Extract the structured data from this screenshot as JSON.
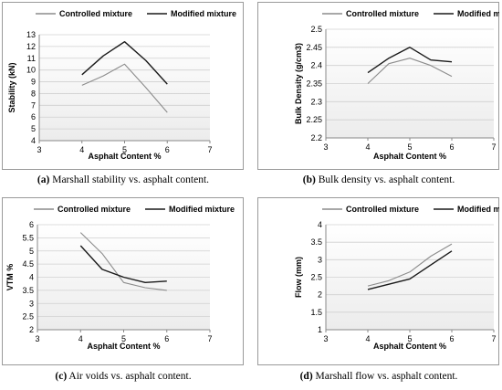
{
  "chart_data": [
    {
      "type": "line",
      "xlabel": "Asphalt Content %",
      "ylabel": "Stability (kN)",
      "xlim": [
        3,
        7
      ],
      "ylim": [
        4,
        13
      ],
      "xticks": [
        "3",
        "4",
        "5",
        "6",
        "7"
      ],
      "yticks": [
        "4",
        "5",
        "6",
        "7",
        "8",
        "9",
        "10",
        "11",
        "12",
        "13"
      ],
      "legend": "top",
      "grid": "horizontal",
      "series": [
        {
          "name": "Controlled mixture",
          "color": "#8c8c8c",
          "points": [
            [
              4,
              8.7
            ],
            [
              4.5,
              9.5
            ],
            [
              5,
              10.5
            ],
            [
              5.5,
              8.5
            ],
            [
              6,
              6.4
            ]
          ]
        },
        {
          "name": "Modified mixture",
          "color": "#1a1a1a",
          "points": [
            [
              4,
              9.6
            ],
            [
              4.5,
              11.2
            ],
            [
              5,
              12.4
            ],
            [
              5.5,
              10.8
            ],
            [
              6,
              8.8
            ]
          ]
        }
      ]
    },
    {
      "type": "line",
      "xlabel": "Asphalt Content %",
      "ylabel": "Bulk Density (g/cm3)",
      "xlim": [
        3,
        7
      ],
      "ylim": [
        2.2,
        2.5
      ],
      "xticks": [
        "3",
        "4",
        "5",
        "6",
        "7"
      ],
      "yticks": [
        "2.2",
        "2.25",
        "2.3",
        "2.35",
        "2.4",
        "2.45",
        "2.5"
      ],
      "legend": "top",
      "grid": "horizontal",
      "series": [
        {
          "name": "Controlled mixture",
          "color": "#8c8c8c",
          "points": [
            [
              4,
              2.35
            ],
            [
              4.5,
              2.405
            ],
            [
              5,
              2.42
            ],
            [
              5.5,
              2.4
            ],
            [
              6,
              2.37
            ]
          ]
        },
        {
          "name": "Modified mixture",
          "color": "#1a1a1a",
          "points": [
            [
              4,
              2.38
            ],
            [
              4.5,
              2.42
            ],
            [
              5,
              2.45
            ],
            [
              5.5,
              2.415
            ],
            [
              6,
              2.41
            ]
          ]
        }
      ]
    },
    {
      "type": "line",
      "xlabel": "Asphalt Content %",
      "ylabel": "VTM %",
      "xlim": [
        3,
        7
      ],
      "ylim": [
        2,
        6
      ],
      "xticks": [
        "3",
        "4",
        "5",
        "6",
        "7"
      ],
      "yticks": [
        "2",
        "2.5",
        "3",
        "3.5",
        "4",
        "4.5",
        "5",
        "5.5",
        "6"
      ],
      "legend": "top",
      "grid": "horizontal",
      "series": [
        {
          "name": "Controlled mixture",
          "color": "#8c8c8c",
          "points": [
            [
              4,
              5.7
            ],
            [
              4.5,
              4.9
            ],
            [
              5,
              3.8
            ],
            [
              5.5,
              3.6
            ],
            [
              6,
              3.5
            ]
          ]
        },
        {
          "name": "Modified mixture",
          "color": "#1a1a1a",
          "points": [
            [
              4,
              5.2
            ],
            [
              4.5,
              4.3
            ],
            [
              5,
              4.0
            ],
            [
              5.5,
              3.8
            ],
            [
              6,
              3.85
            ]
          ]
        }
      ]
    },
    {
      "type": "line",
      "xlabel": "Asphalt Content %",
      "ylabel": "Flow (mm)",
      "xlim": [
        3,
        7
      ],
      "ylim": [
        1,
        4
      ],
      "xticks": [
        "3",
        "4",
        "5",
        "6",
        "7"
      ],
      "yticks": [
        "1",
        "1.5",
        "2",
        "2.5",
        "3",
        "3.5",
        "4"
      ],
      "legend": "top",
      "grid": "horizontal",
      "series": [
        {
          "name": "Controlled mixture",
          "color": "#8c8c8c",
          "points": [
            [
              4,
              2.25
            ],
            [
              4.5,
              2.4
            ],
            [
              5,
              2.65
            ],
            [
              5.5,
              3.1
            ],
            [
              6,
              3.45
            ]
          ]
        },
        {
          "name": "Modified mixture",
          "color": "#1a1a1a",
          "points": [
            [
              4,
              2.15
            ],
            [
              4.5,
              2.3
            ],
            [
              5,
              2.45
            ],
            [
              5.5,
              2.85
            ],
            [
              6,
              3.25
            ]
          ]
        }
      ]
    }
  ],
  "captions": [
    {
      "letter": "(a)",
      "text": " Marshall stability vs. asphalt content."
    },
    {
      "letter": "(b)",
      "text": " Bulk density vs. asphalt content."
    },
    {
      "letter": "(c)",
      "text": " Air voids vs. asphalt content."
    },
    {
      "letter": "(d)",
      "text": " Marshall flow vs. asphalt content."
    }
  ],
  "colors": {
    "border": "#9a9a9a",
    "grid": "#d0d0d0",
    "plot_bg_bottom": "#ececec",
    "text": "#000000"
  }
}
